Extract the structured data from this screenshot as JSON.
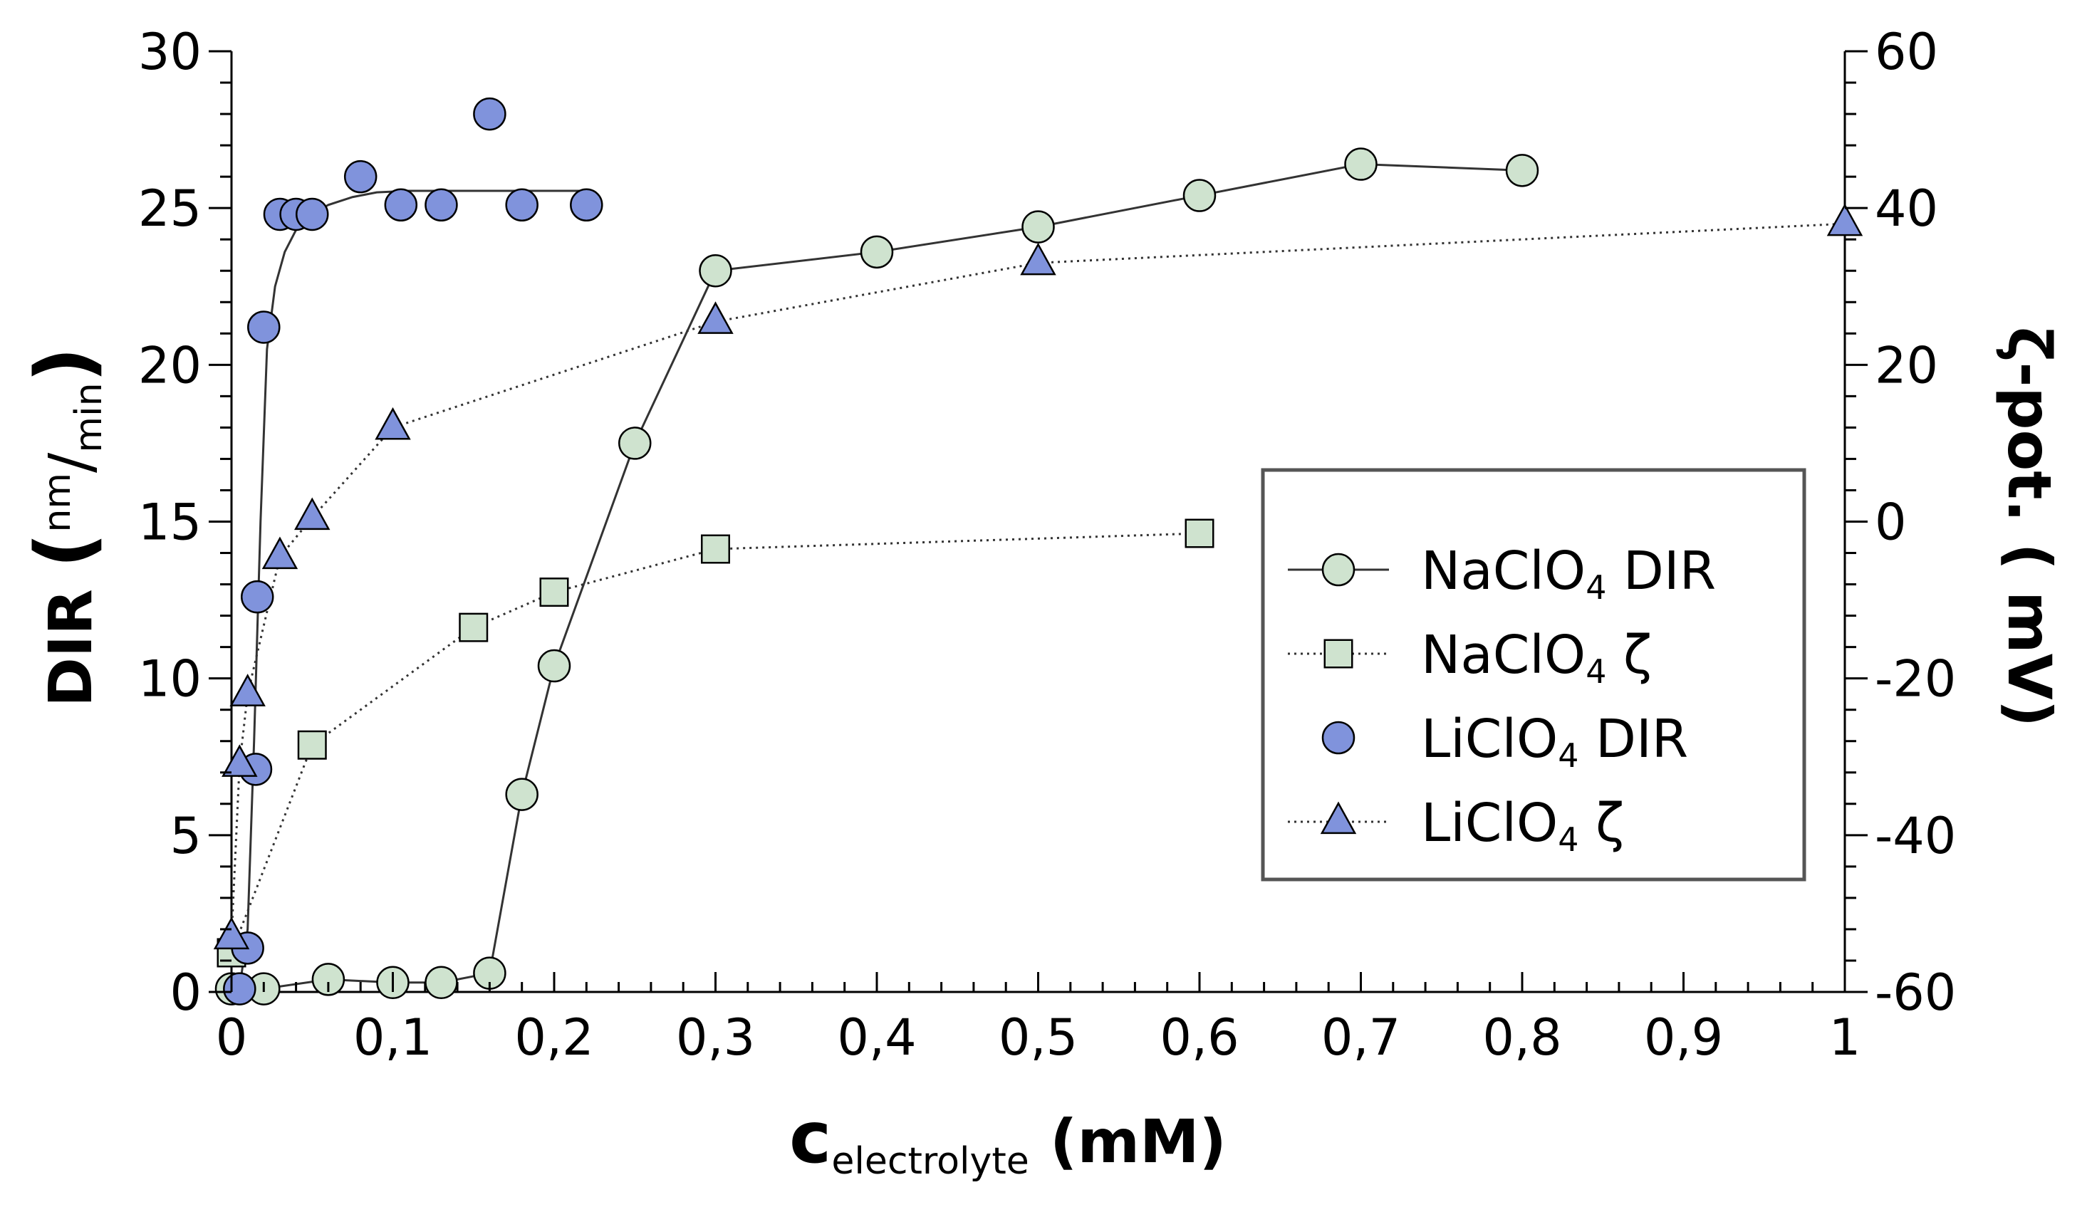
{
  "chart_data": {
    "type": "scatter",
    "x_axis": {
      "label_main": "c",
      "label_sub": "electrolyte",
      "label_unit": "(mM)",
      "min": 0,
      "max": 1,
      "ticks": [
        0,
        0.1,
        0.2,
        0.3,
        0.4,
        0.5,
        0.6,
        0.7,
        0.8,
        0.9,
        1
      ],
      "tick_labels": [
        "0",
        "0,1",
        "0,2",
        "0,3",
        "0,4",
        "0,5",
        "0,6",
        "0,7",
        "0,8",
        "0,9",
        "1"
      ]
    },
    "y_left": {
      "label_main": "DIR",
      "label_paren_open": "(",
      "label_num": "nm",
      "label_slash": "/",
      "label_den": "min",
      "label_paren_close": ")",
      "min": 0,
      "max": 30,
      "ticks": [
        0,
        5,
        10,
        15,
        20,
        25,
        30
      ],
      "tick_labels": [
        "0",
        "5",
        "10",
        "15",
        "20",
        "25",
        "30"
      ]
    },
    "y_right": {
      "label": "ζ-pot. ( mV)",
      "min": -60,
      "max": 60,
      "ticks": [
        -60,
        -40,
        -20,
        0,
        20,
        40,
        60
      ],
      "tick_labels": [
        "-60",
        "-40",
        "-20",
        "0",
        "20",
        "40",
        "60"
      ]
    },
    "series": [
      {
        "id": "naclo4-dir",
        "name_pre": "NaClO",
        "name_sub": "4",
        "name_post": " DIR",
        "axis": "left",
        "marker": "circle",
        "line": "solid",
        "color": "#cfe3cf",
        "x": [
          0,
          0.02,
          0.06,
          0.1,
          0.13,
          0.16,
          0.18,
          0.2,
          0.25,
          0.3,
          0.4,
          0.5,
          0.6,
          0.7,
          0.8
        ],
        "y": [
          0.1,
          0.1,
          0.4,
          0.3,
          0.3,
          0.6,
          6.3,
          10.4,
          17.5,
          23.0,
          23.6,
          24.4,
          25.4,
          26.4,
          26.2
        ]
      },
      {
        "id": "naclo4-zeta",
        "name_pre": "NaClO",
        "name_sub": "4",
        "name_post": " ζ",
        "axis": "right",
        "marker": "square",
        "line": "dotted",
        "color": "#cfe3cf",
        "x": [
          0,
          0.05,
          0.15,
          0.2,
          0.3,
          0.6
        ],
        "y": [
          -55,
          -28.5,
          -13.5,
          -9,
          -3.5,
          -1.5
        ]
      },
      {
        "id": "liclo4-dir",
        "name_pre": "LiClO",
        "name_sub": "4",
        "name_post": " DIR",
        "axis": "left",
        "marker": "circle",
        "line": "none",
        "color": "#8093dc",
        "x": [
          0.005,
          0.01,
          0.015,
          0.016,
          0.02,
          0.03,
          0.04,
          0.05,
          0.08,
          0.105,
          0.13,
          0.16,
          0.18,
          0.22
        ],
        "y": [
          0.1,
          1.4,
          7.1,
          12.6,
          21.2,
          24.8,
          24.8,
          24.8,
          26.0,
          25.1,
          25.1,
          28.0,
          25.1,
          25.1
        ]
      },
      {
        "id": "liclo4-fit",
        "axis": "left",
        "marker": "none",
        "line": "solid",
        "x": [
          0.005,
          0.01,
          0.014,
          0.018,
          0.022,
          0.027,
          0.033,
          0.04,
          0.05,
          0.06,
          0.075,
          0.09,
          0.11,
          0.15,
          0.22
        ],
        "y": [
          0.1,
          2.0,
          8.0,
          15.0,
          20.5,
          22.5,
          23.6,
          24.3,
          24.8,
          25.1,
          25.35,
          25.5,
          25.55,
          25.55,
          25.55
        ]
      },
      {
        "id": "liclo4-zeta",
        "name_pre": "LiClO",
        "name_sub": "4",
        "name_post": " ζ",
        "axis": "right",
        "marker": "triangle",
        "line": "dotted",
        "color": "#8093dc",
        "x": [
          0,
          0.005,
          0.01,
          0.03,
          0.05,
          0.1,
          0.3,
          0.5,
          1.0
        ],
        "y": [
          -53,
          -31,
          -22,
          -4.5,
          0.5,
          12,
          25.5,
          33,
          38
        ]
      }
    ],
    "legend": {
      "position": "center-right",
      "order": [
        "naclo4-dir",
        "naclo4-zeta",
        "liclo4-dir",
        "liclo4-zeta"
      ]
    }
  }
}
